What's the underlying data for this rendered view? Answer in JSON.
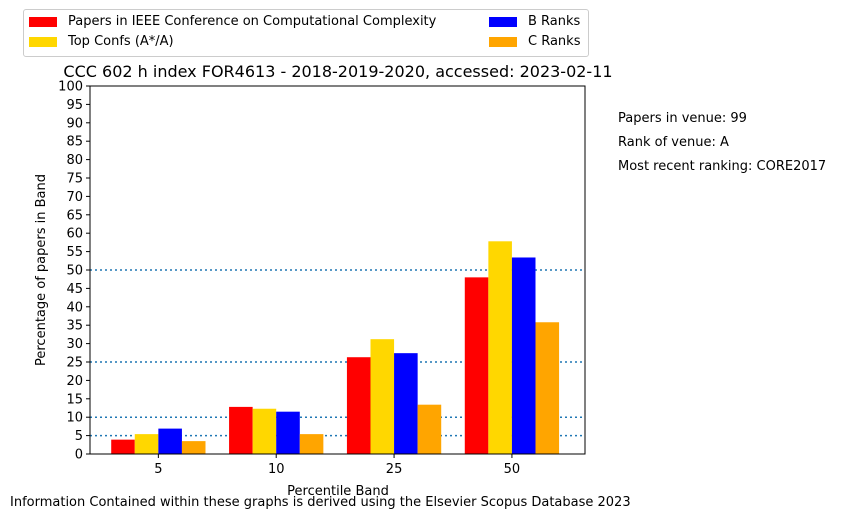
{
  "chart_data": {
    "type": "bar",
    "title": "CCC 602 h index FOR4613 - 2018-2019-2020, accessed: 2023-02-11",
    "xlabel": "Percentile Band",
    "ylabel": "Percentage of papers in Band",
    "categories": [
      "5",
      "10",
      "25",
      "50"
    ],
    "ylim": [
      0,
      100
    ],
    "yticks": [
      "0",
      "5",
      "10",
      "15",
      "20",
      "25",
      "30",
      "35",
      "40",
      "45",
      "50",
      "55",
      "60",
      "65",
      "70",
      "75",
      "80",
      "85",
      "90",
      "95",
      "100"
    ],
    "reference_lines": [
      5,
      10,
      25,
      50
    ],
    "legend_position": "top",
    "series": [
      {
        "name": "Papers in IEEE Conference on Computational Complexity",
        "color": "#ff0000",
        "values": [
          3.9,
          12.8,
          26.3,
          48.0
        ]
      },
      {
        "name": "Top Confs (A*/A)",
        "color": "#ffd700",
        "values": [
          5.4,
          12.3,
          31.2,
          57.8
        ]
      },
      {
        "name": "B Ranks",
        "color": "#0000ff",
        "values": [
          6.9,
          11.5,
          27.4,
          53.4
        ]
      },
      {
        "name": "C Ranks",
        "color": "#ffa500",
        "values": [
          3.5,
          5.4,
          13.4,
          35.8
        ]
      }
    ]
  },
  "side_info": {
    "papers": "Papers in venue: 99",
    "rank": "Rank of venue: A",
    "recent": "Most recent ranking: CORE2017"
  },
  "footer": "Information Contained within these graphs is derived using the Elsevier Scopus Database 2023"
}
